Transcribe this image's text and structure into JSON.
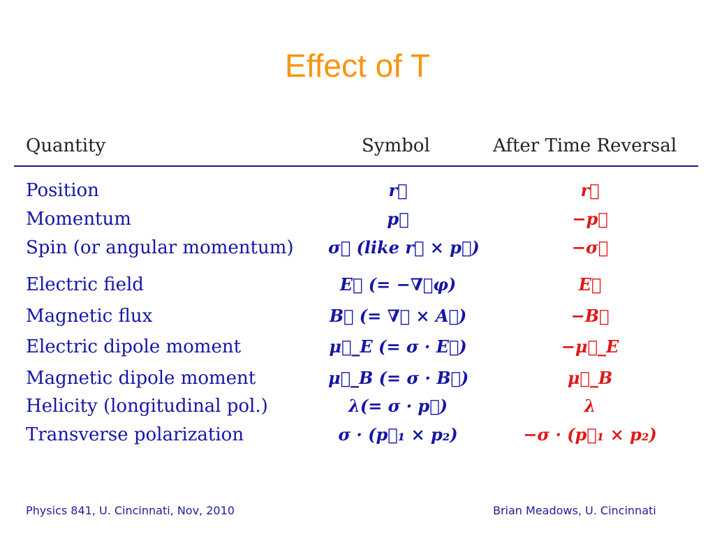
{
  "title": "Effect of T",
  "table": {
    "headers": {
      "quantity": "Quantity",
      "symbol": "Symbol",
      "after": "After Time Reversal"
    },
    "rows": [
      {
        "quantity": "Position",
        "symbol": "r⃗",
        "after": "r⃗"
      },
      {
        "quantity": "Momentum",
        "symbol": "p⃗",
        "after": "−p⃗"
      },
      {
        "quantity": "Spin (or angular momentum)",
        "symbol": "σ⃗ (like r⃗ × p⃗)",
        "after": "−σ⃗"
      },
      {
        "quantity": "Electric field",
        "symbol": "E⃗ (= −∇⃗φ)",
        "after": "E⃗"
      },
      {
        "quantity": "Magnetic flux",
        "symbol": "B⃗ (= ∇⃗ × A⃗)",
        "after": "−B⃗"
      },
      {
        "quantity": "Electric dipole moment",
        "symbol": "μ⃗_E (= σ · E⃗)",
        "after": "−μ⃗_E"
      },
      {
        "quantity": "Magnetic dipole moment",
        "symbol": "μ⃗_B (= σ · B⃗)",
        "after": "μ⃗_B"
      },
      {
        "quantity": "Helicity (longitudinal pol.)",
        "symbol": "λ(= σ · p⃗)",
        "after": "λ"
      },
      {
        "quantity": "Transverse polarization",
        "symbol": "σ · (p⃗₁ × p₂)",
        "after": "−σ · (p⃗₁ × p₂)"
      }
    ]
  },
  "footer": {
    "left": "Physics 841, U. Cincinnati, Nov, 2010",
    "right": "Brian Meadows, U. Cincinnati"
  },
  "colors": {
    "title": "#F5960F",
    "quantity_text": "#1515a6",
    "symbol_text": "#1515a6",
    "after_text": "#e01818",
    "rule": "#1a1a80",
    "footer_text": "#1d1d99"
  }
}
